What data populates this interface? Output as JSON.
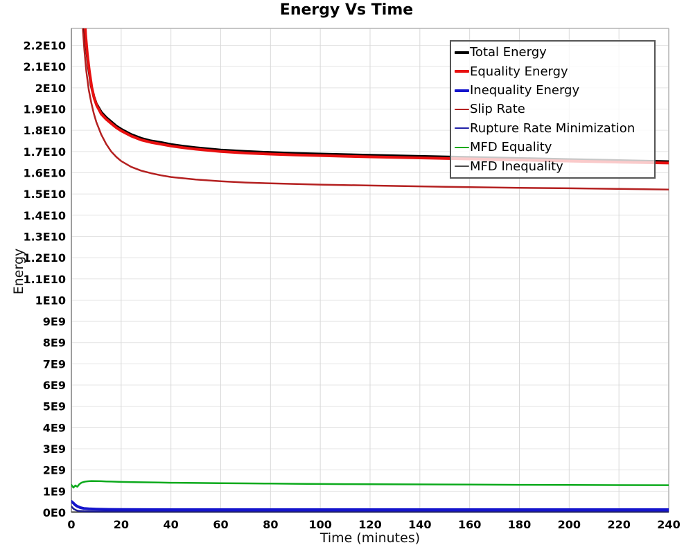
{
  "chart_data": {
    "type": "line",
    "title": "Energy Vs Time",
    "xlabel": "Time (minutes)",
    "ylabel": "Energy",
    "grid": true,
    "legend_position": "top-right",
    "xlim": [
      0,
      240
    ],
    "xticks": [
      0,
      20,
      40,
      60,
      80,
      100,
      120,
      140,
      160,
      180,
      200,
      220,
      240
    ],
    "y_unit_note": "values in units of 1E9",
    "ylim_e9": [
      0,
      22.8
    ],
    "yticks": [
      {
        "v": 0,
        "label": "0E0"
      },
      {
        "v": 1,
        "label": "1E9"
      },
      {
        "v": 2,
        "label": "2E9"
      },
      {
        "v": 3,
        "label": "3E9"
      },
      {
        "v": 4,
        "label": "4E9"
      },
      {
        "v": 5,
        "label": "5E9"
      },
      {
        "v": 6,
        "label": "6E9"
      },
      {
        "v": 7,
        "label": "7E9"
      },
      {
        "v": 8,
        "label": "8E9"
      },
      {
        "v": 9,
        "label": "9E9"
      },
      {
        "v": 10,
        "label": "1E10"
      },
      {
        "v": 11,
        "label": "1.1E10"
      },
      {
        "v": 12,
        "label": "1.2E10"
      },
      {
        "v": 13,
        "label": "1.3E10"
      },
      {
        "v": 14,
        "label": "1.4E10"
      },
      {
        "v": 15,
        "label": "1.5E10"
      },
      {
        "v": 16,
        "label": "1.6E10"
      },
      {
        "v": 17,
        "label": "1.7E10"
      },
      {
        "v": 18,
        "label": "1.8E10"
      },
      {
        "v": 19,
        "label": "1.9E10"
      },
      {
        "v": 20,
        "label": "2E10"
      },
      {
        "v": 21,
        "label": "2.1E10"
      },
      {
        "v": 22,
        "label": "2.2E10"
      }
    ],
    "series": [
      {
        "name": "MFD Inequality",
        "color": "#4a4a4a",
        "width": 2,
        "points": [
          [
            0,
            0.02
          ],
          [
            60,
            0.02
          ],
          [
            120,
            0.02
          ],
          [
            180,
            0.02
          ],
          [
            240,
            0.02
          ]
        ]
      },
      {
        "name": "Rupture Rate Minimization",
        "color": "#1a1a8f",
        "width": 2.5,
        "points": [
          [
            0,
            0.28
          ],
          [
            1,
            0.16
          ],
          [
            2,
            0.1
          ],
          [
            3,
            0.07
          ],
          [
            5,
            0.055
          ],
          [
            10,
            0.05
          ],
          [
            20,
            0.05
          ],
          [
            60,
            0.05
          ],
          [
            120,
            0.05
          ],
          [
            180,
            0.05
          ],
          [
            240,
            0.05
          ]
        ]
      },
      {
        "name": "Inequality Energy",
        "color": "#1414cc",
        "width": 4,
        "points": [
          [
            0,
            0.52
          ],
          [
            0.8,
            0.44
          ],
          [
            1.6,
            0.35
          ],
          [
            2.5,
            0.28
          ],
          [
            3.5,
            0.23
          ],
          [
            5,
            0.19
          ],
          [
            7,
            0.17
          ],
          [
            10,
            0.155
          ],
          [
            15,
            0.145
          ],
          [
            20,
            0.14
          ],
          [
            30,
            0.135
          ],
          [
            60,
            0.13
          ],
          [
            120,
            0.13
          ],
          [
            180,
            0.13
          ],
          [
            240,
            0.13
          ]
        ]
      },
      {
        "name": "MFD Equality",
        "color": "#0caa1c",
        "width": 2.5,
        "points": [
          [
            0,
            1.3
          ],
          [
            0.8,
            1.17
          ],
          [
            1.6,
            1.27
          ],
          [
            2.4,
            1.21
          ],
          [
            3.2,
            1.33
          ],
          [
            4,
            1.4
          ],
          [
            5,
            1.44
          ],
          [
            6,
            1.46
          ],
          [
            8,
            1.48
          ],
          [
            10,
            1.475
          ],
          [
            12,
            1.47
          ],
          [
            14,
            1.46
          ],
          [
            16,
            1.455
          ],
          [
            20,
            1.44
          ],
          [
            25,
            1.43
          ],
          [
            30,
            1.42
          ],
          [
            35,
            1.41
          ],
          [
            40,
            1.4
          ],
          [
            50,
            1.39
          ],
          [
            60,
            1.38
          ],
          [
            70,
            1.37
          ],
          [
            80,
            1.36
          ],
          [
            90,
            1.35
          ],
          [
            100,
            1.34
          ],
          [
            110,
            1.335
          ],
          [
            120,
            1.33
          ],
          [
            140,
            1.32
          ],
          [
            160,
            1.31
          ],
          [
            180,
            1.3
          ],
          [
            200,
            1.295
          ],
          [
            220,
            1.29
          ],
          [
            240,
            1.285
          ]
        ]
      },
      {
        "name": "Slip Rate",
        "color": "#b42020",
        "width": 2.5,
        "points": [
          [
            3.9,
            24.5
          ],
          [
            4.6,
            22.8
          ],
          [
            5.2,
            21.8
          ],
          [
            6,
            20.8
          ],
          [
            7,
            19.9
          ],
          [
            8,
            19.3
          ],
          [
            9,
            18.8
          ],
          [
            10,
            18.4
          ],
          [
            12,
            17.8
          ],
          [
            14,
            17.35
          ],
          [
            16,
            17.0
          ],
          [
            18,
            16.75
          ],
          [
            20,
            16.55
          ],
          [
            24,
            16.28
          ],
          [
            28,
            16.1
          ],
          [
            32,
            15.98
          ],
          [
            36,
            15.88
          ],
          [
            40,
            15.8
          ],
          [
            50,
            15.68
          ],
          [
            60,
            15.6
          ],
          [
            70,
            15.54
          ],
          [
            80,
            15.5
          ],
          [
            100,
            15.44
          ],
          [
            120,
            15.4
          ],
          [
            140,
            15.36
          ],
          [
            160,
            15.32
          ],
          [
            180,
            15.29
          ],
          [
            200,
            15.27
          ],
          [
            220,
            15.24
          ],
          [
            240,
            15.21
          ]
        ]
      },
      {
        "name": "Total Energy",
        "color": "#000000",
        "width": 4,
        "points": [
          [
            4.6,
            24.5
          ],
          [
            5.5,
            22.6
          ],
          [
            6.2,
            21.7
          ],
          [
            7,
            20.9
          ],
          [
            8,
            20.1
          ],
          [
            9,
            19.6
          ],
          [
            10,
            19.25
          ],
          [
            12,
            18.85
          ],
          [
            14,
            18.6
          ],
          [
            16,
            18.4
          ],
          [
            18,
            18.2
          ],
          [
            20,
            18.05
          ],
          [
            24,
            17.8
          ],
          [
            28,
            17.62
          ],
          [
            32,
            17.5
          ],
          [
            36,
            17.42
          ],
          [
            40,
            17.33
          ],
          [
            45,
            17.25
          ],
          [
            50,
            17.18
          ],
          [
            60,
            17.07
          ],
          [
            70,
            17.0
          ],
          [
            80,
            16.95
          ],
          [
            90,
            16.91
          ],
          [
            100,
            16.88
          ],
          [
            110,
            16.85
          ],
          [
            120,
            16.82
          ],
          [
            140,
            16.77
          ],
          [
            160,
            16.72
          ],
          [
            180,
            16.67
          ],
          [
            200,
            16.62
          ],
          [
            220,
            16.57
          ],
          [
            240,
            16.52
          ]
        ]
      },
      {
        "name": "Equality Energy",
        "color": "#e81010",
        "width": 4,
        "points": [
          [
            4.8,
            24.5
          ],
          [
            5.7,
            22.5
          ],
          [
            6.4,
            21.6
          ],
          [
            7.2,
            20.8
          ],
          [
            8.2,
            20.0
          ],
          [
            9.2,
            19.5
          ],
          [
            10.2,
            19.17
          ],
          [
            12,
            18.77
          ],
          [
            14,
            18.52
          ],
          [
            16,
            18.32
          ],
          [
            18,
            18.13
          ],
          [
            20,
            17.98
          ],
          [
            24,
            17.73
          ],
          [
            28,
            17.55
          ],
          [
            32,
            17.43
          ],
          [
            36,
            17.35
          ],
          [
            40,
            17.26
          ],
          [
            45,
            17.18
          ],
          [
            50,
            17.11
          ],
          [
            60,
            17.0
          ],
          [
            70,
            16.93
          ],
          [
            80,
            16.88
          ],
          [
            90,
            16.84
          ],
          [
            100,
            16.81
          ],
          [
            110,
            16.78
          ],
          [
            120,
            16.75
          ],
          [
            140,
            16.7
          ],
          [
            160,
            16.65
          ],
          [
            180,
            16.6
          ],
          [
            200,
            16.55
          ],
          [
            220,
            16.5
          ],
          [
            240,
            16.46
          ]
        ]
      }
    ]
  },
  "legend": {
    "items": [
      {
        "label": "Total Energy",
        "color": "#000000",
        "thick": 4
      },
      {
        "label": "Equality Energy",
        "color": "#e81010",
        "thick": 4
      },
      {
        "label": "Inequality Energy",
        "color": "#1414cc",
        "thick": 4
      },
      {
        "label": "Slip Rate",
        "color": "#b42020",
        "thick": 2
      },
      {
        "label": "Rupture Rate Minimization",
        "color": "#2020a8",
        "thick": 2
      },
      {
        "label": "MFD Equality",
        "color": "#0caa1c",
        "thick": 2
      },
      {
        "label": "MFD Inequality",
        "color": "#4a4a4a",
        "thick": 2
      }
    ]
  }
}
